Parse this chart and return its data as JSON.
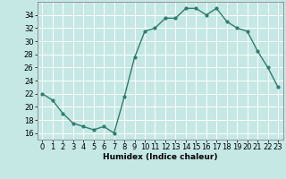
{
  "x": [
    0,
    1,
    2,
    3,
    4,
    5,
    6,
    7,
    8,
    9,
    10,
    11,
    12,
    13,
    14,
    15,
    16,
    17,
    18,
    19,
    20,
    21,
    22,
    23
  ],
  "y": [
    22,
    21,
    19,
    17.5,
    17,
    16.5,
    17,
    16,
    21.5,
    27.5,
    31.5,
    32,
    33.5,
    33.5,
    35,
    35,
    34,
    35,
    33,
    32,
    31.5,
    28.5,
    26,
    23
  ],
  "line_color": "#2e7d6e",
  "marker": "o",
  "marker_size": 2,
  "background_color": "#c5e8e5",
  "grid_color": "#ffffff",
  "xlabel": "Humidex (Indice chaleur)",
  "ylim": [
    15,
    36
  ],
  "xlim": [
    -0.5,
    23.5
  ],
  "yticks": [
    16,
    18,
    20,
    22,
    24,
    26,
    28,
    30,
    32,
    34
  ],
  "xticks": [
    0,
    1,
    2,
    3,
    4,
    5,
    6,
    7,
    8,
    9,
    10,
    11,
    12,
    13,
    14,
    15,
    16,
    17,
    18,
    19,
    20,
    21,
    22,
    23
  ],
  "xlabel_fontsize": 6.5,
  "tick_fontsize": 6,
  "line_width": 1.0
}
